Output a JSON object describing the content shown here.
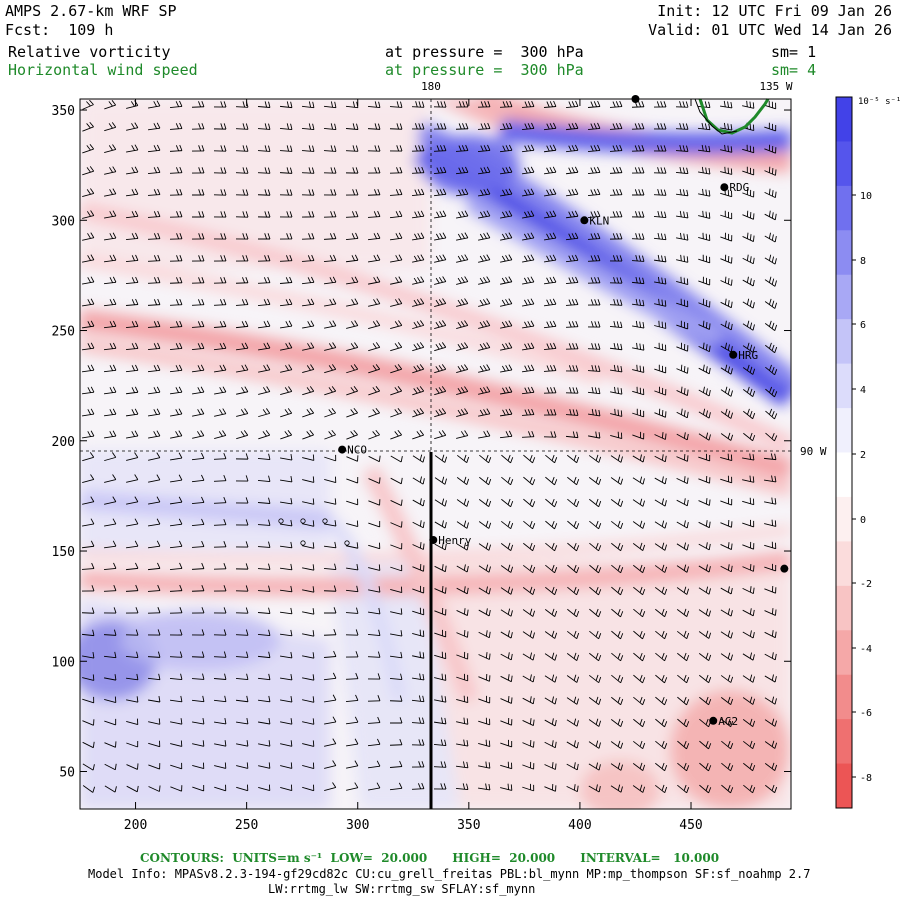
{
  "header": {
    "model": "AMPS 2.67-km WRF SP",
    "forecast": "Fcst:  109 h",
    "init": "Init: 12 UTC Fri 09 Jan 26",
    "valid": "Valid: 01 UTC Wed 14 Jan 26",
    "field1_name": "Relative vorticity",
    "field1_level": "at pressure =  300 hPa",
    "field1_sm": "sm= 1",
    "field2_name": "Horizontal wind speed",
    "field2_level": "at pressure =  300 hPa",
    "field2_sm": "sm= 4"
  },
  "map": {
    "x_ticks": [
      "200",
      "250",
      "300",
      "350",
      "400",
      "450"
    ],
    "y_ticks": [
      "350",
      "300",
      "250",
      "200",
      "150",
      "100",
      "50"
    ],
    "x_range": [
      175,
      495
    ],
    "y_range": [
      33,
      355
    ],
    "meridian_labels": {
      "lon180": "180",
      "lon135w": "135 W",
      "lon90w": "90 W"
    },
    "stations": [
      {
        "name": "RDG",
        "x": 465,
        "y": 315
      },
      {
        "name": "KLN",
        "x": 402,
        "y": 300
      },
      {
        "name": "HRG",
        "x": 469,
        "y": 239
      },
      {
        "name": "NCO",
        "x": 293,
        "y": 196
      },
      {
        "name": "Henry",
        "x": 334,
        "y": 155
      },
      {
        "name": "AG2",
        "x": 460,
        "y": 73
      },
      {
        "name": "",
        "x": 425,
        "y": 355
      },
      {
        "name": "",
        "x": 492,
        "y": 142
      }
    ]
  },
  "colorbar": {
    "units": "10⁻⁵ s⁻¹",
    "labels": [
      "10",
      "8",
      "6",
      "4",
      "2",
      "0",
      "-2",
      "-4",
      "-6",
      "-8"
    ],
    "colors": [
      "#4242e8",
      "#5555ec",
      "#7070ef",
      "#8c8cf2",
      "#a8a8f5",
      "#c4c4f8",
      "#dcdcfb",
      "#f0f0fd",
      "#ffffff",
      "#fdf0f0",
      "#fbdcdc",
      "#f8c4c4",
      "#f5a8a8",
      "#f28c8c",
      "#ef7070",
      "#ec5555"
    ]
  },
  "footer": {
    "contours": "CONTOURS:  UNITS=m s⁻¹  LOW=  20.000      HIGH=  20.000      INTERVAL=   10.000",
    "model_info": "Model Info: MPASv8.2.3-194-gf29cd82c CU:cu_grell_freitas PBL:bl_mynn MP:mp_thompson SF:sf_noahmp 2.7",
    "model_info2": "LW:rrtmg_lw SW:rrtmg_sw SFLAY:sf_mynn"
  }
}
